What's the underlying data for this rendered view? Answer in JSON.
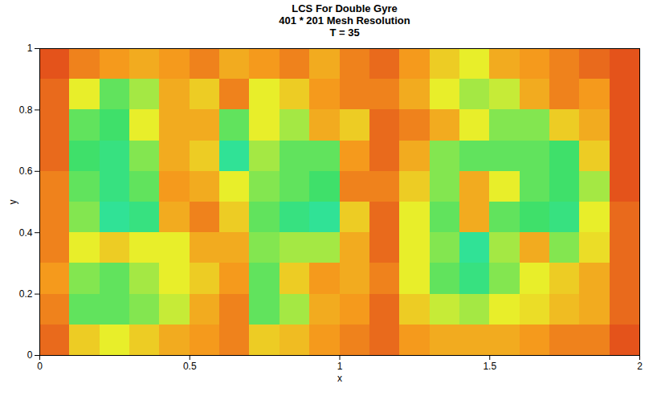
{
  "chart_data": {
    "type": "heatmap",
    "title": [
      "LCS For Double Gyre",
      "401 * 201 Mesh Resolution",
      "T = 35"
    ],
    "x_label": "x",
    "y_label": "y",
    "xlim": [
      0,
      2
    ],
    "ylim": [
      0,
      1
    ],
    "xticks": [
      0,
      0.5,
      1,
      1.5,
      2
    ],
    "yticks": [
      0,
      0.2,
      0.4,
      0.6,
      0.8,
      1
    ],
    "zlim": [
      0,
      1
    ],
    "x": [
      0.05,
      0.15,
      0.25,
      0.35,
      0.45,
      0.55,
      0.65,
      0.75,
      0.85,
      0.95,
      1.05,
      1.15,
      1.25,
      1.35,
      1.45,
      1.55,
      1.65,
      1.75,
      1.85,
      1.95
    ],
    "y": [
      0.95,
      0.85,
      0.75,
      0.65,
      0.55,
      0.45,
      0.35,
      0.25,
      0.15,
      0.05
    ],
    "cells": [
      [
        0.9,
        0.8,
        0.75,
        0.7,
        0.75,
        0.8,
        0.7,
        0.75,
        0.8,
        0.7,
        0.8,
        0.85,
        0.75,
        0.6,
        0.5,
        0.7,
        0.75,
        0.8,
        0.85,
        0.9
      ],
      [
        0.85,
        0.5,
        0.3,
        0.4,
        0.7,
        0.6,
        0.8,
        0.5,
        0.6,
        0.75,
        0.8,
        0.8,
        0.7,
        0.5,
        0.4,
        0.45,
        0.7,
        0.8,
        0.75,
        0.9
      ],
      [
        0.85,
        0.3,
        0.25,
        0.5,
        0.7,
        0.7,
        0.3,
        0.5,
        0.4,
        0.7,
        0.6,
        0.85,
        0.8,
        0.7,
        0.5,
        0.35,
        0.35,
        0.6,
        0.7,
        0.9
      ],
      [
        0.85,
        0.25,
        0.2,
        0.35,
        0.7,
        0.6,
        0.15,
        0.4,
        0.3,
        0.3,
        0.75,
        0.85,
        0.7,
        0.35,
        0.3,
        0.3,
        0.3,
        0.25,
        0.6,
        0.9
      ],
      [
        0.8,
        0.3,
        0.2,
        0.3,
        0.75,
        0.7,
        0.5,
        0.35,
        0.3,
        0.25,
        0.8,
        0.8,
        0.6,
        0.35,
        0.7,
        0.5,
        0.3,
        0.25,
        0.4,
        0.9
      ],
      [
        0.8,
        0.35,
        0.15,
        0.2,
        0.7,
        0.8,
        0.6,
        0.3,
        0.2,
        0.15,
        0.6,
        0.85,
        0.5,
        0.3,
        0.7,
        0.3,
        0.25,
        0.2,
        0.5,
        0.85
      ],
      [
        0.8,
        0.5,
        0.6,
        0.5,
        0.5,
        0.7,
        0.7,
        0.35,
        0.4,
        0.4,
        0.7,
        0.85,
        0.5,
        0.35,
        0.15,
        0.4,
        0.7,
        0.35,
        0.55,
        0.85
      ],
      [
        0.75,
        0.35,
        0.3,
        0.4,
        0.5,
        0.6,
        0.75,
        0.3,
        0.6,
        0.75,
        0.7,
        0.8,
        0.5,
        0.3,
        0.2,
        0.35,
        0.5,
        0.6,
        0.7,
        0.85
      ],
      [
        0.8,
        0.3,
        0.3,
        0.35,
        0.45,
        0.7,
        0.8,
        0.3,
        0.4,
        0.7,
        0.75,
        0.85,
        0.6,
        0.45,
        0.4,
        0.5,
        0.55,
        0.65,
        0.7,
        0.85
      ],
      [
        0.85,
        0.6,
        0.5,
        0.6,
        0.7,
        0.75,
        0.8,
        0.6,
        0.65,
        0.75,
        0.8,
        0.85,
        0.75,
        0.7,
        0.7,
        0.7,
        0.75,
        0.8,
        0.8,
        0.9
      ]
    ]
  }
}
